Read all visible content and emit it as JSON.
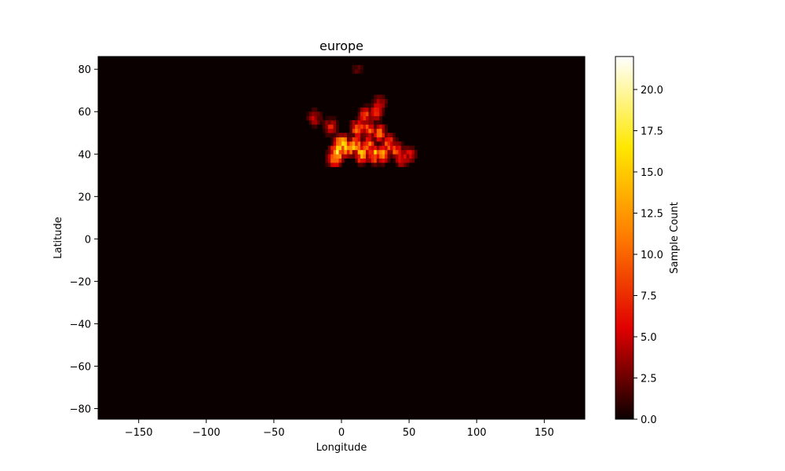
{
  "chart_data": {
    "type": "heatmap",
    "title": "europe",
    "xlabel": "Longitude",
    "ylabel": "Latitude",
    "xlim": [
      -180,
      180
    ],
    "ylim": [
      -85,
      86
    ],
    "xticks": [
      -150,
      -100,
      -50,
      0,
      50,
      100,
      150
    ],
    "yticks": [
      -80,
      -60,
      -40,
      -20,
      0,
      20,
      40,
      60,
      80
    ],
    "grid": false,
    "colormap": "hot",
    "colormap_stops": [
      "#0a0000",
      "#e00000",
      "#ff7a00",
      "#ffe800",
      "#ffffff"
    ],
    "background_color": "#0a0000",
    "bin_size_deg": 2,
    "colorbar": {
      "label": "Sample Count",
      "range": [
        0,
        22
      ],
      "ticks": [
        "0.0",
        "2.5",
        "5.0",
        "7.5",
        "10.0",
        "12.5",
        "15.0",
        "17.5",
        "20.0"
      ]
    },
    "clusters": [
      {
        "lon": 0,
        "lat": 45,
        "count": 19
      },
      {
        "lon": 5,
        "lat": 43,
        "count": 16
      },
      {
        "lon": -3,
        "lat": 41,
        "count": 17
      },
      {
        "lon": -5,
        "lat": 38,
        "count": 14
      },
      {
        "lon": 10,
        "lat": 44,
        "count": 14
      },
      {
        "lon": 15,
        "lat": 40,
        "count": 15
      },
      {
        "lon": 20,
        "lat": 44,
        "count": 12
      },
      {
        "lon": 25,
        "lat": 40,
        "count": 14
      },
      {
        "lon": 30,
        "lat": 40,
        "count": 12
      },
      {
        "lon": 12,
        "lat": 52,
        "count": 11
      },
      {
        "lon": 20,
        "lat": 52,
        "count": 10
      },
      {
        "lon": 28,
        "lat": 50,
        "count": 10
      },
      {
        "lon": 35,
        "lat": 45,
        "count": 11
      },
      {
        "lon": 40,
        "lat": 42,
        "count": 9
      },
      {
        "lon": 45,
        "lat": 38,
        "count": 8
      },
      {
        "lon": 18,
        "lat": 58,
        "count": 9
      },
      {
        "lon": 25,
        "lat": 60,
        "count": 8
      },
      {
        "lon": 28,
        "lat": 64,
        "count": 6
      },
      {
        "lon": 50,
        "lat": 40,
        "count": 6
      },
      {
        "lon": -20,
        "lat": 57,
        "count": 5
      },
      {
        "lon": -8,
        "lat": 53,
        "count": 6
      },
      {
        "lon": 12,
        "lat": 80,
        "count": 2
      }
    ]
  }
}
